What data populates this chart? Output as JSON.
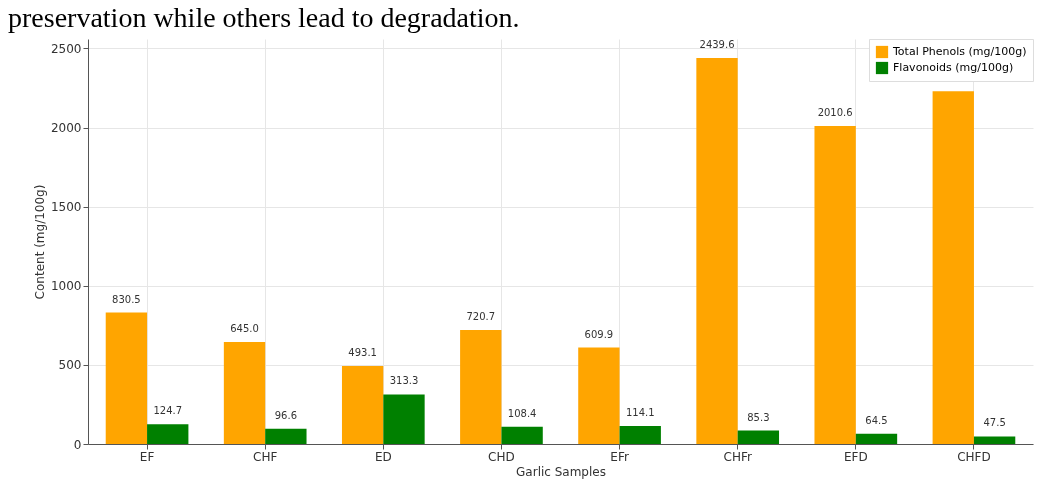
{
  "chart_data": {
    "type": "bar",
    "title": "preservation while others lead to degradation.",
    "xlabel": "Garlic Samples",
    "ylabel": "Content (mg/100g)",
    "categories": [
      "EF",
      "CHF",
      "ED",
      "CHD",
      "EFr",
      "CHFr",
      "EFD",
      "CHFD"
    ],
    "series": [
      {
        "name": "Total Phenols (mg/100g)",
        "color": "#ffa500",
        "values": [
          830.5,
          645.0,
          493.1,
          720.7,
          609.9,
          2439.6,
          2010.6,
          2230
        ],
        "value_labels": [
          "830.5",
          "645.0",
          "493.1",
          "720.7",
          "609.9",
          "2439.6",
          "2010.6",
          null
        ]
      },
      {
        "name": "Flavonoids (mg/100g)",
        "color": "#008000",
        "values": [
          124.7,
          96.6,
          313.3,
          108.4,
          114.1,
          85.3,
          64.5,
          47.5
        ],
        "value_labels": [
          "124.7",
          "96.6",
          "313.3",
          "108.4",
          "114.1",
          "85.3",
          "64.5",
          "47.5"
        ]
      }
    ],
    "ylim": [
      0,
      2560
    ],
    "yticks": [
      0,
      500,
      1000,
      1500,
      2000,
      2500
    ],
    "grid": true,
    "legend": "top right"
  }
}
